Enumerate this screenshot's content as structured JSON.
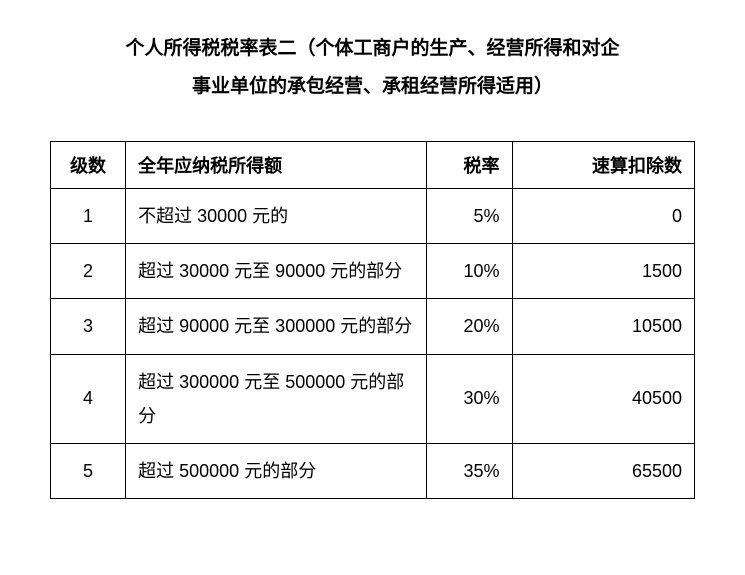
{
  "title_line1": "个人所得税税率表二（个体工商户的生产、经营所得和对企",
  "title_line2": "事业单位的承包经营、承租经营所得适用）",
  "table": {
    "headers": {
      "level": "级数",
      "income": "全年应纳税所得额",
      "rate": "税率",
      "deduct": "速算扣除数"
    },
    "rows": [
      {
        "level": "1",
        "income": "不超过 30000 元的",
        "rate": "5%",
        "deduct": "0"
      },
      {
        "level": "2",
        "income": "超过 30000 元至 90000 元的部分",
        "rate": "10%",
        "deduct": "1500"
      },
      {
        "level": "3",
        "income": "超过 90000 元至 300000 元的部分",
        "rate": "20%",
        "deduct": "10500"
      },
      {
        "level": "4",
        "income": "超过 300000 元至 500000 元的部分",
        "rate": "30%",
        "deduct": "40500"
      },
      {
        "level": "5",
        "income": "超过 500000 元的部分",
        "rate": "35%",
        "deduct": "65500"
      }
    ]
  },
  "styling": {
    "background_color": "#ffffff",
    "text_color": "#000000",
    "border_color": "#000000",
    "title_fontsize": 19,
    "table_fontsize": 18,
    "font_family": "SimSun",
    "column_widths": {
      "level": 70,
      "income": 280,
      "rate": 80,
      "deduct": 170
    },
    "column_align": {
      "level": "center",
      "income": "left",
      "rate": "right",
      "deduct": "right"
    }
  }
}
